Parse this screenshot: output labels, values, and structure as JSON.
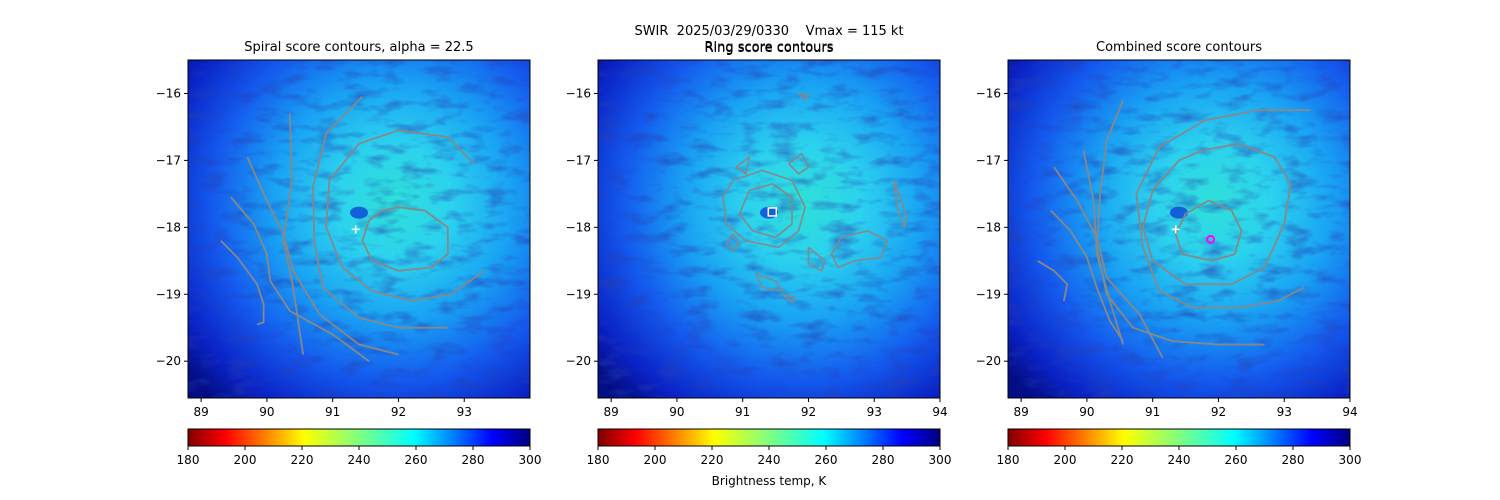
{
  "suptitle": {
    "line1": "SWIR  2025/03/29/0330    Vmax = 115 kt",
    "line2": "Ring score contours"
  },
  "colorbar": {
    "label": "Brightness temp, K",
    "ticks": [
      "180",
      "200",
      "220",
      "240",
      "260",
      "280",
      "300"
    ],
    "range": [
      180,
      300
    ],
    "colormap": "jet_reversed"
  },
  "colors": {
    "contour": "#888888",
    "center_marker": "#ffffff",
    "combined_marker": "#ff00ff",
    "eye_marker": "#6fd2ff"
  },
  "chart_data": [
    {
      "type": "heatmap",
      "title": "Spiral score contours, alpha = 22.5",
      "xlim": [
        88.8,
        94.0
      ],
      "ylim": [
        -20.55,
        -15.5
      ],
      "xticks": [
        89,
        90,
        91,
        92,
        93
      ],
      "xtick_labels": [
        "89",
        "90",
        "91",
        "92",
        "93"
      ],
      "yticks": [
        -16,
        -17,
        -18,
        -19,
        -20
      ],
      "ytick_labels": [
        "−16",
        "−17",
        "−18",
        "−19",
        "−20"
      ],
      "marker": {
        "x": 91.35,
        "y": -18.03,
        "symbol": "+"
      },
      "contours": [
        [
          [
            92.0,
            -17.7
          ],
          [
            92.4,
            -17.75
          ],
          [
            92.75,
            -18.0
          ],
          [
            92.75,
            -18.4
          ],
          [
            92.5,
            -18.6
          ],
          [
            92.0,
            -18.65
          ],
          [
            91.6,
            -18.5
          ],
          [
            91.45,
            -18.2
          ],
          [
            91.55,
            -17.9
          ],
          [
            91.75,
            -17.75
          ],
          [
            92.0,
            -17.7
          ]
        ],
        [
          [
            93.15,
            -17.05
          ],
          [
            92.75,
            -16.65
          ],
          [
            92.0,
            -16.55
          ],
          [
            91.4,
            -16.75
          ],
          [
            90.95,
            -17.3
          ],
          [
            90.9,
            -18.0
          ],
          [
            91.15,
            -18.6
          ],
          [
            91.6,
            -18.95
          ],
          [
            92.2,
            -19.1
          ],
          [
            92.8,
            -19.0
          ],
          [
            93.3,
            -18.65
          ]
        ],
        [
          [
            91.45,
            -16.05
          ],
          [
            90.9,
            -16.6
          ],
          [
            90.7,
            -17.4
          ],
          [
            90.72,
            -18.2
          ],
          [
            90.85,
            -18.9
          ],
          [
            91.4,
            -19.35
          ],
          [
            92.0,
            -19.5
          ],
          [
            92.75,
            -19.5
          ]
        ],
        [
          [
            90.35,
            -16.3
          ],
          [
            90.38,
            -17.3
          ],
          [
            90.25,
            -18.2
          ],
          [
            90.4,
            -18.9
          ],
          [
            90.55,
            -19.9
          ]
        ],
        [
          [
            89.7,
            -16.95
          ],
          [
            90.0,
            -17.6
          ],
          [
            90.25,
            -18.1
          ],
          [
            90.4,
            -18.65
          ],
          [
            90.8,
            -19.3
          ],
          [
            91.4,
            -19.75
          ],
          [
            92.0,
            -19.9
          ]
        ],
        [
          [
            89.45,
            -17.55
          ],
          [
            89.8,
            -17.95
          ],
          [
            90.0,
            -18.4
          ],
          [
            90.05,
            -18.8
          ],
          [
            90.35,
            -19.25
          ],
          [
            91.0,
            -19.6
          ],
          [
            91.55,
            -20.0
          ]
        ],
        [
          [
            89.3,
            -18.2
          ],
          [
            89.55,
            -18.45
          ],
          [
            89.85,
            -18.85
          ],
          [
            89.95,
            -19.15
          ],
          [
            89.95,
            -19.42
          ],
          [
            89.85,
            -19.45
          ]
        ]
      ]
    },
    {
      "type": "heatmap",
      "title": "Ring score contours",
      "xlim": [
        88.8,
        94.0
      ],
      "ylim": [
        -20.55,
        -15.5
      ],
      "xticks": [
        89,
        90,
        91,
        92,
        93,
        94
      ],
      "xtick_labels": [
        "89",
        "90",
        "91",
        "92",
        "93",
        "94"
      ],
      "yticks": [
        -16,
        -17,
        -18,
        -19,
        -20
      ],
      "ytick_labels": [
        "−16",
        "−17",
        "−18",
        "−19",
        "−20"
      ],
      "marker": {
        "x": 91.45,
        "y": -17.77,
        "symbol": "square"
      },
      "contours": [
        [
          [
            91.1,
            -17.45
          ],
          [
            91.45,
            -17.35
          ],
          [
            91.75,
            -17.55
          ],
          [
            91.75,
            -17.95
          ],
          [
            91.5,
            -18.15
          ],
          [
            91.15,
            -18.05
          ],
          [
            90.95,
            -17.8
          ],
          [
            91.1,
            -17.45
          ]
        ],
        [
          [
            90.85,
            -17.3
          ],
          [
            91.3,
            -17.15
          ],
          [
            91.75,
            -17.3
          ],
          [
            91.95,
            -17.7
          ],
          [
            91.85,
            -18.05
          ],
          [
            91.55,
            -18.3
          ],
          [
            91.05,
            -18.2
          ],
          [
            90.75,
            -17.95
          ],
          [
            90.7,
            -17.55
          ],
          [
            90.85,
            -17.3
          ]
        ],
        [
          [
            90.9,
            -17.1
          ],
          [
            91.1,
            -16.95
          ],
          [
            91.05,
            -17.2
          ],
          [
            90.9,
            -17.1
          ]
        ],
        [
          [
            91.7,
            -17.05
          ],
          [
            91.9,
            -16.9
          ],
          [
            92.0,
            -17.1
          ],
          [
            91.85,
            -17.2
          ],
          [
            91.7,
            -17.05
          ]
        ],
        [
          [
            90.85,
            -18.1
          ],
          [
            90.95,
            -18.25
          ],
          [
            90.85,
            -18.35
          ],
          [
            90.75,
            -18.25
          ],
          [
            90.85,
            -18.1
          ]
        ],
        [
          [
            92.5,
            -18.15
          ],
          [
            92.9,
            -18.05
          ],
          [
            93.2,
            -18.2
          ],
          [
            93.1,
            -18.45
          ],
          [
            92.7,
            -18.5
          ],
          [
            92.45,
            -18.6
          ],
          [
            92.35,
            -18.4
          ],
          [
            92.5,
            -18.15
          ]
        ],
        [
          [
            93.3,
            -17.3
          ],
          [
            93.4,
            -17.55
          ],
          [
            93.5,
            -17.85
          ],
          [
            93.45,
            -18.0
          ],
          [
            93.35,
            -17.7
          ],
          [
            93.3,
            -17.3
          ]
        ],
        [
          [
            92.0,
            -18.3
          ],
          [
            92.25,
            -18.5
          ],
          [
            92.2,
            -18.65
          ],
          [
            92.0,
            -18.55
          ],
          [
            92.0,
            -18.3
          ]
        ],
        [
          [
            91.2,
            -18.7
          ],
          [
            91.5,
            -18.8
          ],
          [
            91.6,
            -18.95
          ],
          [
            91.3,
            -18.9
          ],
          [
            91.2,
            -18.7
          ]
        ],
        [
          [
            91.6,
            -19.0
          ],
          [
            91.8,
            -19.05
          ],
          [
            91.75,
            -19.12
          ],
          [
            91.6,
            -19.0
          ]
        ],
        [
          [
            91.85,
            -16.0
          ],
          [
            92.0,
            -16.02
          ],
          [
            91.95,
            -16.1
          ],
          [
            91.85,
            -16.0
          ]
        ]
      ]
    },
    {
      "type": "heatmap",
      "title": "Combined score contours",
      "xlim": [
        88.8,
        94.0
      ],
      "ylim": [
        -20.55,
        -15.5
      ],
      "xticks": [
        89,
        90,
        91,
        92,
        93,
        94
      ],
      "xtick_labels": [
        "89",
        "90",
        "91",
        "92",
        "93",
        "94"
      ],
      "yticks": [
        -16,
        -17,
        -18,
        -19,
        -20
      ],
      "ytick_labels": [
        "−16",
        "−17",
        "−18",
        "−19",
        "−20"
      ],
      "marker": {
        "x": 91.35,
        "y": -18.03,
        "symbol": "+"
      },
      "combined_marker": {
        "x": 91.88,
        "y": -18.18
      },
      "contours": [
        [
          [
            91.85,
            -17.6
          ],
          [
            92.2,
            -17.75
          ],
          [
            92.35,
            -18.05
          ],
          [
            92.25,
            -18.4
          ],
          [
            91.9,
            -18.5
          ],
          [
            91.45,
            -18.4
          ],
          [
            91.35,
            -18.1
          ],
          [
            91.5,
            -17.8
          ],
          [
            91.85,
            -17.6
          ]
        ],
        [
          [
            91.75,
            -16.85
          ],
          [
            92.3,
            -16.75
          ],
          [
            92.85,
            -16.95
          ],
          [
            93.1,
            -17.35
          ],
          [
            93.0,
            -17.95
          ],
          [
            92.7,
            -18.6
          ],
          [
            92.2,
            -18.85
          ],
          [
            91.5,
            -18.85
          ],
          [
            91.0,
            -18.5
          ],
          [
            90.85,
            -18.0
          ],
          [
            91.0,
            -17.45
          ],
          [
            91.4,
            -17.0
          ],
          [
            91.75,
            -16.85
          ]
        ],
        [
          [
            93.4,
            -16.25
          ],
          [
            92.6,
            -16.25
          ],
          [
            91.8,
            -16.4
          ],
          [
            91.1,
            -16.8
          ],
          [
            90.75,
            -17.5
          ],
          [
            90.85,
            -18.3
          ],
          [
            91.1,
            -18.95
          ],
          [
            91.6,
            -19.2
          ],
          [
            92.3,
            -19.2
          ],
          [
            92.9,
            -19.1
          ],
          [
            93.3,
            -18.9
          ]
        ],
        [
          [
            90.55,
            -16.1
          ],
          [
            90.3,
            -16.7
          ],
          [
            90.2,
            -17.5
          ],
          [
            90.15,
            -18.3
          ],
          [
            90.3,
            -19.0
          ],
          [
            90.7,
            -19.5
          ],
          [
            91.3,
            -19.7
          ],
          [
            92.0,
            -19.75
          ],
          [
            92.7,
            -19.75
          ]
        ],
        [
          [
            89.95,
            -16.85
          ],
          [
            90.1,
            -17.6
          ],
          [
            90.15,
            -18.4
          ],
          [
            90.35,
            -19.1
          ],
          [
            90.55,
            -19.75
          ]
        ],
        [
          [
            89.5,
            -17.1
          ],
          [
            89.85,
            -17.6
          ],
          [
            90.15,
            -18.15
          ],
          [
            90.3,
            -18.75
          ],
          [
            90.8,
            -19.3
          ],
          [
            91.15,
            -19.95
          ]
        ],
        [
          [
            89.45,
            -17.75
          ],
          [
            89.75,
            -18.05
          ],
          [
            90.0,
            -18.45
          ],
          [
            90.15,
            -18.9
          ],
          [
            90.35,
            -19.4
          ],
          [
            90.55,
            -19.7
          ]
        ],
        [
          [
            89.25,
            -18.5
          ],
          [
            89.5,
            -18.65
          ],
          [
            89.7,
            -18.85
          ],
          [
            89.65,
            -19.1
          ]
        ]
      ]
    }
  ]
}
